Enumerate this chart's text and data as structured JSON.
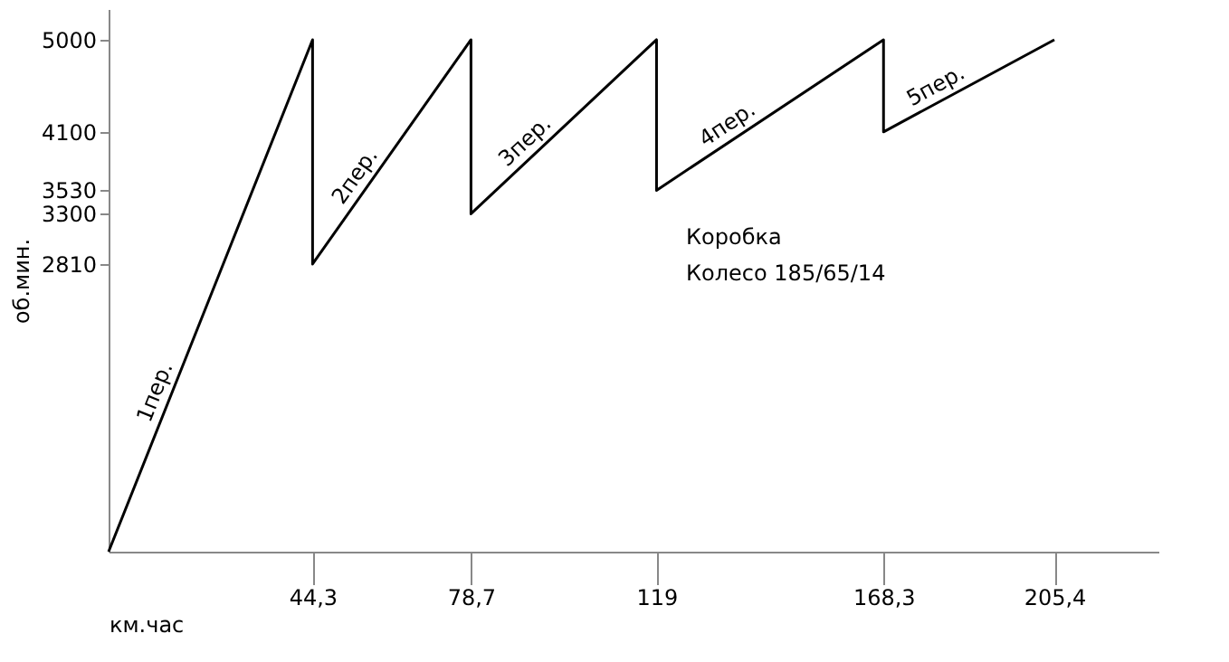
{
  "chart_data": {
    "type": "line",
    "xlabel": "км.час",
    "ylabel": "об.мин.",
    "series": [
      {
        "color": "#000000",
        "x": [
          0,
          44.3,
          44.3,
          78.7,
          78.7,
          119,
          119,
          168.3,
          168.3,
          205.4
        ],
        "values": [
          0,
          5000,
          2810,
          5000,
          3300,
          5000,
          3530,
          5000,
          4100,
          5000
        ]
      }
    ],
    "xlim": [
      0,
      228
    ],
    "ylim": [
      0,
      5300
    ],
    "xticks": [
      {
        "value": 44.3,
        "label": "44,3"
      },
      {
        "value": 78.7,
        "label": "78,7"
      },
      119,
      {
        "value": 168.3,
        "label": "168,3"
      },
      {
        "value": 205.4,
        "label": "205,4"
      }
    ],
    "yticks": [
      2810,
      3300,
      3530,
      4100,
      5000
    ],
    "annotations": [
      "1пер.",
      "2пер.",
      "3пер.",
      "4пер.",
      "5пер.",
      "Коробка",
      "Колесо 185/65/14"
    ],
    "grid": false,
    "marker": "none",
    "line_style": "solid"
  }
}
